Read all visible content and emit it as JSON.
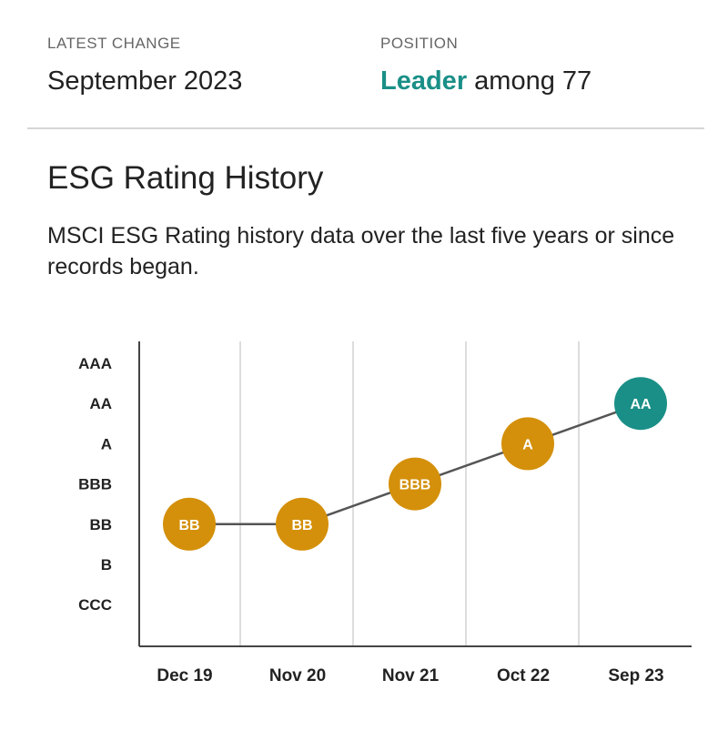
{
  "summary": {
    "latest_change_label": "LATEST CHANGE",
    "latest_change_value": "September 2023",
    "position_label": "POSITION",
    "position_highlight": "Leader",
    "position_rest": " among 77"
  },
  "section": {
    "title": "ESG Rating History",
    "description": "MSCI ESG Rating history data over the last five years or since records began."
  },
  "colors": {
    "accent": "#1a8f87",
    "average": "#d4900a",
    "line": "#555555",
    "grid": "#dddddd",
    "axis": "#444444"
  },
  "chart_data": {
    "type": "line",
    "title": "",
    "xlabel": "",
    "ylabel": "",
    "y_categories": [
      "CCC",
      "B",
      "BB",
      "BBB",
      "A",
      "AA",
      "AAA"
    ],
    "categories": [
      "Dec 19",
      "Nov 20",
      "Nov 21",
      "Oct 22",
      "Sep 23"
    ],
    "values": [
      "BB",
      "BB",
      "BBB",
      "A",
      "AA"
    ],
    "point_status": [
      "average",
      "average",
      "average",
      "average",
      "leader"
    ],
    "grid": true
  }
}
